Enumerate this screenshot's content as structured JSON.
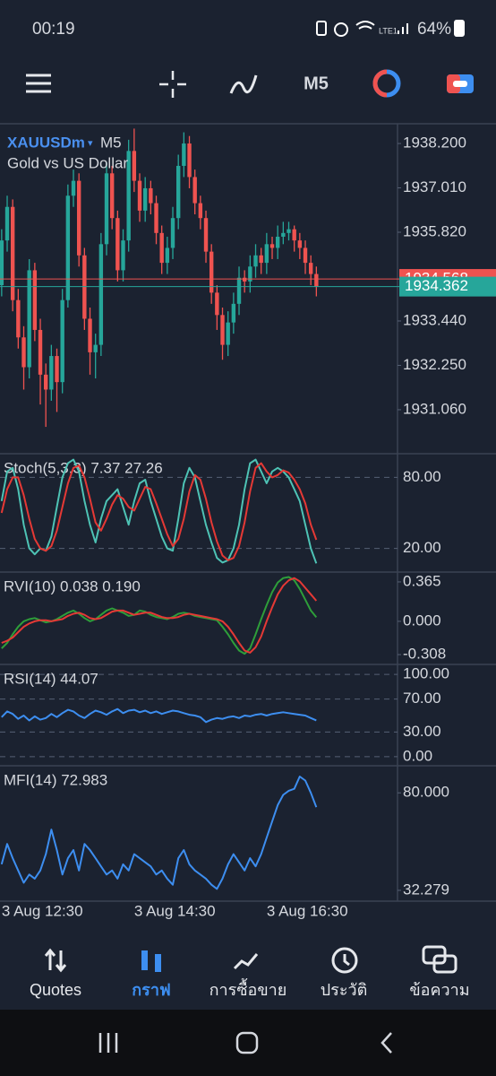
{
  "status_bar": {
    "time": "00:19",
    "network": "LTE1",
    "battery": "64%"
  },
  "toolbar": {
    "timeframe": "M5"
  },
  "nav": [
    "Quotes",
    "กราฟ",
    "การซื้อขาย",
    "ประวัติ",
    "ข้อความ"
  ],
  "chart_data": [
    {
      "type": "candlestick",
      "symbol": "XAUUSDm",
      "timeframe": "M5",
      "description": "Gold vs US Dollar",
      "up_color": "#26a69a",
      "down_color": "#ef5350",
      "bid": 1934.362,
      "ask": 1934.568,
      "xlim": [
        -0.3,
        71.7
      ],
      "ylim": [
        1929.88,
        1938.73
      ],
      "yticks": [
        {
          "value": 1938.2,
          "label": "1938.200"
        },
        {
          "value": 1937.01,
          "label": "1937.010"
        },
        {
          "value": 1935.82,
          "label": "1935.820"
        },
        {
          "value": 1933.44,
          "label": "1933.440"
        },
        {
          "value": 1932.25,
          "label": "1932.250"
        },
        {
          "value": 1931.06,
          "label": "1931.060"
        }
      ],
      "xticks": [
        {
          "value": 0,
          "label": "3 Aug 12:30"
        },
        {
          "value": 24,
          "label": "3 Aug 14:30"
        },
        {
          "value": 48,
          "label": "3 Aug 16:30"
        }
      ],
      "grid": false,
      "ohlc": [
        [
          1934.4,
          1935.9,
          1934.1,
          1935.6
        ],
        [
          1935.6,
          1936.8,
          1935.3,
          1936.5
        ],
        [
          1936.5,
          1936.7,
          1933.7,
          1934.0
        ],
        [
          1934.0,
          1934.3,
          1932.7,
          1933.0
        ],
        [
          1933.0,
          1933.3,
          1931.6,
          1932.2
        ],
        [
          1932.2,
          1935.1,
          1931.9,
          1934.8
        ],
        [
          1934.8,
          1935.0,
          1932.9,
          1933.2
        ],
        [
          1933.2,
          1933.5,
          1931.2,
          1932.0
        ],
        [
          1932.0,
          1932.3,
          1930.6,
          1931.6
        ],
        [
          1931.6,
          1932.8,
          1931.3,
          1932.5
        ],
        [
          1932.5,
          1932.7,
          1931.0,
          1931.8
        ],
        [
          1931.8,
          1934.3,
          1931.5,
          1934.0
        ],
        [
          1934.0,
          1937.1,
          1933.8,
          1936.8
        ],
        [
          1936.8,
          1937.5,
          1936.5,
          1937.2
        ],
        [
          1937.2,
          1937.4,
          1934.9,
          1935.2
        ],
        [
          1935.2,
          1935.4,
          1933.2,
          1933.5
        ],
        [
          1933.5,
          1933.8,
          1932.0,
          1932.6
        ],
        [
          1932.6,
          1933.1,
          1931.9,
          1932.8
        ],
        [
          1932.8,
          1935.8,
          1932.5,
          1935.5
        ],
        [
          1935.5,
          1937.7,
          1935.2,
          1937.4
        ],
        [
          1937.4,
          1937.6,
          1935.9,
          1936.2
        ],
        [
          1936.2,
          1936.4,
          1934.5,
          1934.8
        ],
        [
          1934.8,
          1935.9,
          1934.5,
          1935.6
        ],
        [
          1935.6,
          1938.3,
          1935.3,
          1938.0
        ],
        [
          1938.0,
          1938.6,
          1936.9,
          1937.2
        ],
        [
          1937.2,
          1937.4,
          1936.1,
          1936.4
        ],
        [
          1936.4,
          1937.3,
          1936.1,
          1937.0
        ],
        [
          1937.0,
          1937.2,
          1936.3,
          1936.6
        ],
        [
          1936.6,
          1936.8,
          1935.5,
          1935.8
        ],
        [
          1935.8,
          1936.0,
          1934.7,
          1935.0
        ],
        [
          1935.0,
          1935.7,
          1934.7,
          1935.4
        ],
        [
          1935.4,
          1936.5,
          1935.1,
          1936.2
        ],
        [
          1936.2,
          1937.9,
          1935.9,
          1937.6
        ],
        [
          1937.6,
          1938.5,
          1937.3,
          1938.2
        ],
        [
          1938.2,
          1938.4,
          1937.0,
          1937.3
        ],
        [
          1937.3,
          1937.5,
          1936.3,
          1936.6
        ],
        [
          1936.6,
          1936.8,
          1935.9,
          1936.2
        ],
        [
          1936.2,
          1936.4,
          1935.0,
          1935.3
        ],
        [
          1935.3,
          1935.5,
          1933.9,
          1934.2
        ],
        [
          1934.2,
          1934.4,
          1933.2,
          1933.6
        ],
        [
          1933.6,
          1933.8,
          1932.4,
          1932.8
        ],
        [
          1932.8,
          1933.7,
          1932.5,
          1933.4
        ],
        [
          1933.4,
          1934.2,
          1933.1,
          1933.9
        ],
        [
          1933.9,
          1934.9,
          1933.6,
          1934.6
        ],
        [
          1934.6,
          1934.8,
          1934.2,
          1934.5
        ],
        [
          1934.5,
          1935.2,
          1934.2,
          1934.9
        ],
        [
          1934.9,
          1935.5,
          1934.6,
          1935.2
        ],
        [
          1935.2,
          1935.4,
          1934.7,
          1935.0
        ],
        [
          1935.0,
          1935.8,
          1934.7,
          1935.5
        ],
        [
          1935.5,
          1935.7,
          1935.1,
          1935.4
        ],
        [
          1935.4,
          1936.0,
          1935.1,
          1935.7
        ],
        [
          1935.7,
          1936.1,
          1935.5,
          1935.8
        ],
        [
          1935.8,
          1936.1,
          1935.6,
          1935.9
        ],
        [
          1935.9,
          1936.0,
          1935.3,
          1935.6
        ],
        [
          1935.6,
          1935.8,
          1935.1,
          1935.4
        ],
        [
          1935.4,
          1935.6,
          1934.7,
          1935.0
        ],
        [
          1935.0,
          1935.2,
          1934.4,
          1934.7
        ],
        [
          1934.7,
          1934.9,
          1934.1,
          1934.362
        ]
      ]
    },
    {
      "type": "line",
      "label": "Stoch(5,3,3) 7.37 27.26",
      "xlim": [
        -0.3,
        71.7
      ],
      "ylim": [
        0,
        100
      ],
      "yticks": [
        {
          "value": 80,
          "label": "80.00"
        },
        {
          "value": 20,
          "label": "20.00"
        }
      ],
      "grid": true,
      "series": [
        {
          "color": "#4ec3b5",
          "values": [
            60,
            85,
            88,
            70,
            40,
            20,
            15,
            20,
            18,
            30,
            55,
            80,
            92,
            95,
            85,
            60,
            40,
            25,
            45,
            60,
            65,
            70,
            55,
            40,
            60,
            75,
            78,
            60,
            45,
            30,
            20,
            18,
            45,
            75,
            88,
            80,
            60,
            40,
            25,
            12,
            8,
            10,
            20,
            40,
            70,
            92,
            95,
            85,
            75,
            85,
            88,
            85,
            80,
            70,
            60,
            40,
            20,
            7.37
          ]
        },
        {
          "color": "#e53935",
          "values": [
            50,
            70,
            80,
            80,
            65,
            45,
            28,
            20,
            18,
            22,
            35,
            55,
            75,
            88,
            90,
            80,
            62,
            42,
            35,
            45,
            57,
            65,
            62,
            55,
            52,
            62,
            72,
            70,
            58,
            45,
            32,
            22,
            28,
            45,
            68,
            82,
            78,
            62,
            42,
            26,
            14,
            10,
            12,
            22,
            42,
            68,
            88,
            92,
            85,
            80,
            82,
            86,
            84,
            78,
            70,
            58,
            40,
            27.26
          ]
        }
      ]
    },
    {
      "type": "line",
      "label": "RVI(10) 0.038 0.190",
      "xlim": [
        -0.3,
        71.7
      ],
      "ylim": [
        -0.399,
        0.456
      ],
      "yticks": [
        0.365,
        {
          "value": 0,
          "label": "0.000"
        },
        -0.308
      ],
      "grid": false,
      "series": [
        {
          "color": "#2e9e3a",
          "values": [
            -0.25,
            -0.2,
            -0.12,
            -0.05,
            0,
            0.02,
            0.03,
            0.01,
            -0.01,
            0,
            0.02,
            0.05,
            0.08,
            0.1,
            0.07,
            0.03,
            0,
            0.02,
            0.06,
            0.1,
            0.12,
            0.1,
            0.08,
            0.05,
            0.06,
            0.1,
            0.09,
            0.06,
            0.04,
            0.03,
            0.02,
            0.04,
            0.07,
            0.08,
            0.07,
            0.05,
            0.04,
            0.03,
            0.02,
            0.01,
            -0.05,
            -0.12,
            -0.2,
            -0.27,
            -0.3,
            -0.25,
            -0.12,
            0.02,
            0.15,
            0.27,
            0.36,
            0.4,
            0.41,
            0.38,
            0.3,
            0.2,
            0.1,
            0.038
          ]
        },
        {
          "color": "#e53935",
          "values": [
            -0.2,
            -0.18,
            -0.15,
            -0.1,
            -0.05,
            -0.02,
            0,
            0.01,
            0.01,
            0,
            0.01,
            0.02,
            0.05,
            0.07,
            0.08,
            0.06,
            0.03,
            0.02,
            0.03,
            0.06,
            0.09,
            0.1,
            0.1,
            0.08,
            0.06,
            0.07,
            0.08,
            0.08,
            0.06,
            0.04,
            0.03,
            0.03,
            0.04,
            0.06,
            0.07,
            0.06,
            0.05,
            0.04,
            0.03,
            0.02,
            0,
            -0.05,
            -0.12,
            -0.2,
            -0.27,
            -0.29,
            -0.24,
            -0.14,
            0,
            0.13,
            0.25,
            0.33,
            0.38,
            0.4,
            0.37,
            0.31,
            0.25,
            0.19
          ]
        }
      ]
    },
    {
      "type": "line",
      "label": "RSI(14) 44.07",
      "xlim": [
        -0.3,
        71.7
      ],
      "ylim": [
        -11.1,
        112.2
      ],
      "yticks": [
        {
          "value": 100,
          "label": "100.00"
        },
        {
          "value": 70,
          "label": "70.00"
        },
        {
          "value": 30,
          "label": "30.00"
        },
        {
          "value": 0,
          "label": "0.00"
        }
      ],
      "grid": true,
      "series": [
        {
          "color": "#3d8ef0",
          "values": [
            48,
            55,
            52,
            46,
            50,
            44,
            49,
            45,
            47,
            52,
            48,
            53,
            57,
            55,
            50,
            47,
            52,
            56,
            54,
            51,
            55,
            58,
            53,
            56,
            57,
            54,
            56,
            53,
            55,
            52,
            54,
            56,
            55,
            53,
            51,
            50,
            48,
            42,
            45,
            47,
            46,
            48,
            49,
            47,
            50,
            49,
            51,
            52,
            50,
            52,
            53,
            54,
            53,
            52,
            51,
            50,
            47,
            44.07
          ]
        }
      ]
    },
    {
      "type": "line",
      "label": "MFI(14) 72.983",
      "xlim": [
        -0.3,
        71.7
      ],
      "ylim": [
        26.98,
        93.26
      ],
      "yticks": [
        {
          "value": 80,
          "label": "80.000"
        },
        32.279
      ],
      "grid": false,
      "series": [
        {
          "color": "#3d8ef0",
          "values": [
            45,
            55,
            48,
            42,
            36,
            40,
            38,
            42,
            50,
            62,
            52,
            40,
            48,
            52,
            42,
            55,
            52,
            48,
            44,
            40,
            42,
            38,
            45,
            42,
            50,
            48,
            46,
            44,
            40,
            42,
            38,
            35,
            48,
            52,
            45,
            42,
            40,
            38,
            35,
            33,
            38,
            45,
            50,
            46,
            42,
            48,
            44,
            50,
            58,
            66,
            74,
            79,
            81,
            82,
            88,
            86,
            80,
            72.983
          ]
        }
      ]
    }
  ]
}
